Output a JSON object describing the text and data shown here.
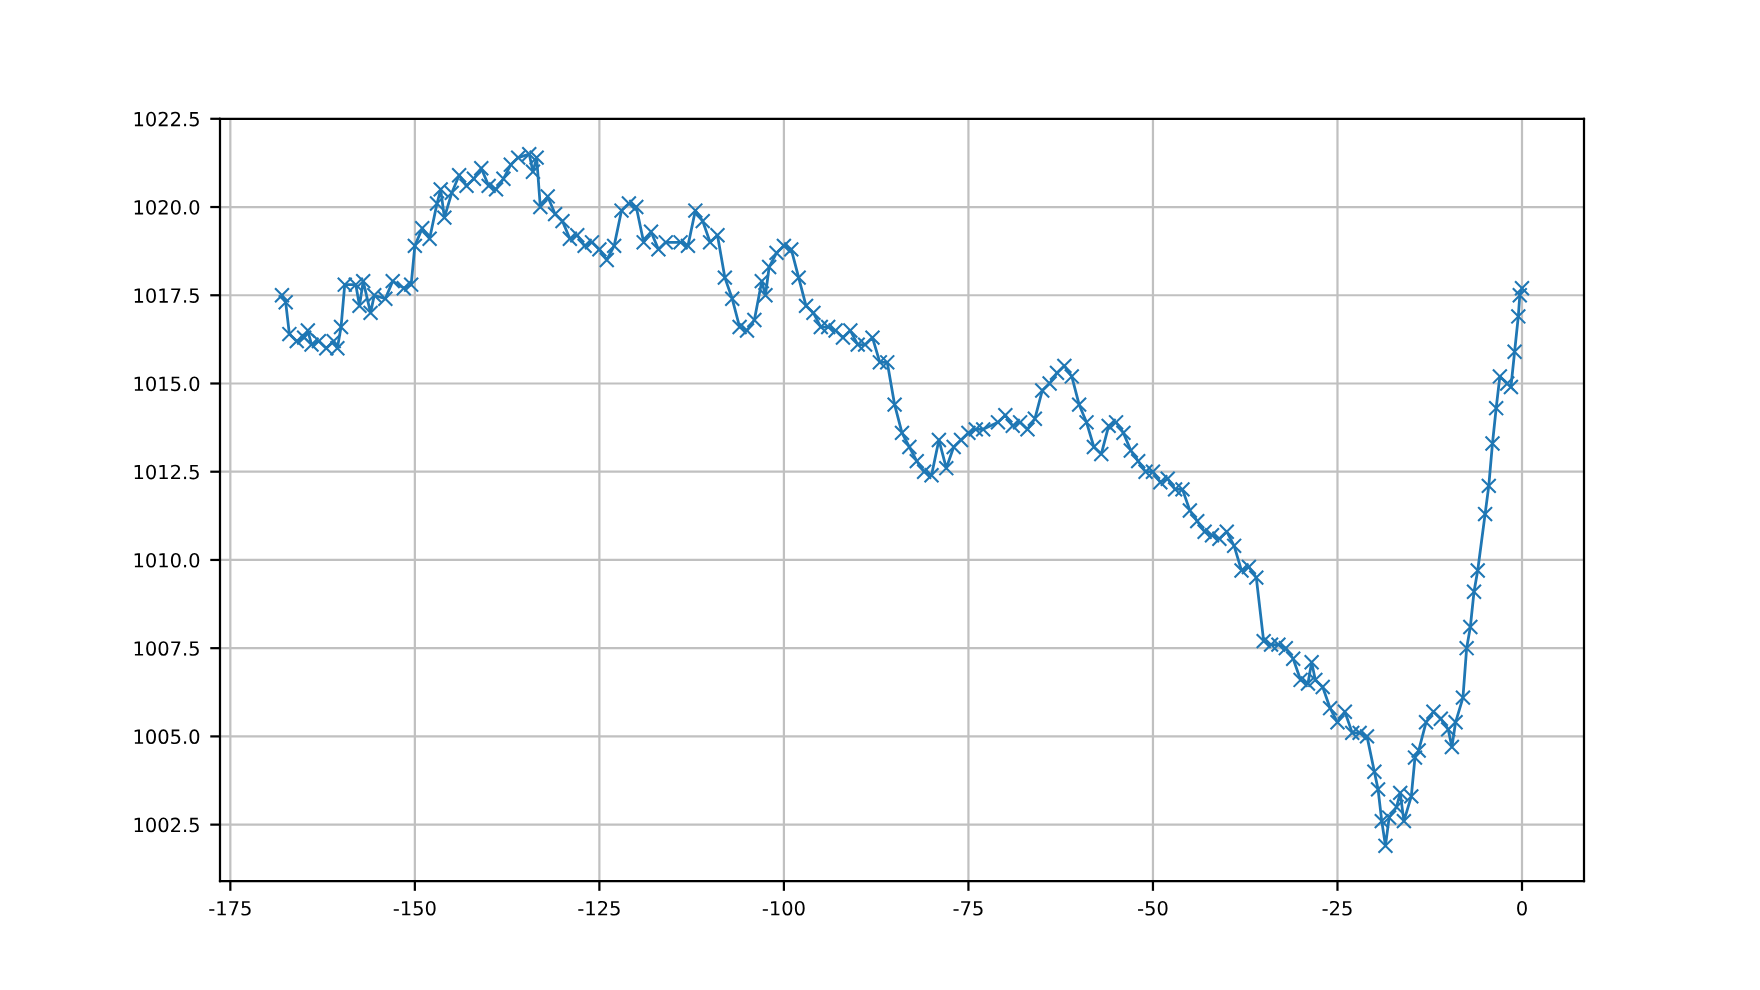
{
  "chart_data": {
    "type": "line",
    "marker": "cross",
    "grid": true,
    "xlim": [
      -176.4,
      8.4
    ],
    "xticks": [
      -175,
      -150,
      -125,
      -100,
      -75,
      -50,
      -25,
      0
    ],
    "ylim": [
      1000.9,
      1022.5
    ],
    "yticks": [
      {
        "value": 1002.5,
        "label": "1002.5"
      },
      {
        "value": 1005,
        "label": "1005.0"
      },
      {
        "value": 1007.5,
        "label": "1007.5"
      },
      {
        "value": 1010,
        "label": "1010.0"
      },
      {
        "value": 1012.5,
        "label": "1012.5"
      },
      {
        "value": 1015,
        "label": "1015.0"
      },
      {
        "value": 1017.5,
        "label": "1017.5"
      },
      {
        "value": 1020,
        "label": "1020.0"
      },
      {
        "value": 1022.5,
        "label": "1022.5"
      }
    ],
    "series": [
      {
        "color": "#1f77b4",
        "x": [
          -168,
          -167.5,
          -167,
          -166,
          -165,
          -164.5,
          -164,
          -163,
          -162,
          -161,
          -160.5,
          -160,
          -159.5,
          -158,
          -157.5,
          -157,
          -156,
          -155.5,
          -154,
          -153,
          -151.5,
          -150.5,
          -150,
          -149,
          -148,
          -147,
          -146.5,
          -146,
          -145,
          -144,
          -143,
          -142,
          -141,
          -140,
          -139,
          -138,
          -137,
          -136,
          -134.5,
          -134,
          -133.5,
          -133,
          -132,
          -131,
          -130,
          -129,
          -128,
          -127,
          -126,
          -125,
          -124,
          -123,
          -122,
          -121,
          -120,
          -119,
          -118,
          -117,
          -116,
          -114,
          -113,
          -112,
          -111,
          -110,
          -109,
          -108,
          -107,
          -106,
          -105,
          -104,
          -103,
          -102.5,
          -102,
          -101,
          -100,
          -99,
          -98,
          -97,
          -96,
          -95,
          -94,
          -93,
          -92,
          -91,
          -90,
          -89,
          -88,
          -87,
          -86,
          -85,
          -84,
          -83,
          -82,
          -81,
          -80,
          -79,
          -78,
          -77,
          -76,
          -75,
          -74,
          -73,
          -71,
          -70,
          -69,
          -68,
          -67,
          -66,
          -65,
          -64,
          -63,
          -62,
          -61,
          -60,
          -59,
          -58,
          -57,
          -56,
          -55,
          -54,
          -53,
          -52,
          -51,
          -50,
          -49,
          -48,
          -47,
          -46,
          -45,
          -44,
          -43,
          -42,
          -41,
          -40,
          -39,
          -38,
          -37,
          -36,
          -35,
          -34,
          -33,
          -32,
          -31,
          -30,
          -29,
          -28.5,
          -28,
          -27,
          -26,
          -25,
          -24,
          -23,
          -22,
          -21,
          -20,
          -19.5,
          -19,
          -18.5,
          -18,
          -17,
          -16.5,
          -16,
          -15,
          -14.5,
          -14,
          -13,
          -12,
          -11,
          -10,
          -9.5,
          -9,
          -8,
          -7.5,
          -7,
          -6.5,
          -6,
          -5,
          -4.5,
          -4,
          -3.5,
          -3,
          -2,
          -1.5,
          -1,
          -0.5,
          -0.3,
          0
        ],
        "values": [
          1017.5,
          1017.3,
          1016.4,
          1016.2,
          1016.3,
          1016.5,
          1016.1,
          1016.2,
          1016.0,
          1016.2,
          1016.0,
          1016.6,
          1017.8,
          1017.8,
          1017.2,
          1017.9,
          1017.0,
          1017.5,
          1017.4,
          1017.9,
          1017.7,
          1017.8,
          1018.9,
          1019.4,
          1019.1,
          1020.1,
          1020.5,
          1019.7,
          1020.4,
          1020.9,
          1020.6,
          1020.8,
          1021.1,
          1020.6,
          1020.5,
          1020.8,
          1021.2,
          1021.4,
          1021.5,
          1021.0,
          1021.4,
          1020.0,
          1020.3,
          1019.8,
          1019.6,
          1019.1,
          1019.2,
          1018.9,
          1019.0,
          1018.8,
          1018.5,
          1018.9,
          1019.9,
          1020.1,
          1020.0,
          1019.0,
          1019.3,
          1018.8,
          1019.0,
          1019.0,
          1018.9,
          1019.9,
          1019.6,
          1019.0,
          1019.2,
          1018.0,
          1017.4,
          1016.6,
          1016.5,
          1016.8,
          1017.9,
          1017.5,
          1018.3,
          1018.7,
          1018.9,
          1018.8,
          1018.0,
          1017.2,
          1017.0,
          1016.6,
          1016.6,
          1016.5,
          1016.3,
          1016.5,
          1016.1,
          1016.1,
          1016.3,
          1015.6,
          1015.6,
          1014.4,
          1013.6,
          1013.2,
          1012.8,
          1012.5,
          1012.4,
          1013.4,
          1012.6,
          1013.2,
          1013.4,
          1013.6,
          1013.7,
          1013.7,
          1013.9,
          1014.1,
          1013.8,
          1013.9,
          1013.7,
          1014.0,
          1014.8,
          1015.0,
          1015.3,
          1015.5,
          1015.2,
          1014.4,
          1013.9,
          1013.2,
          1013.0,
          1013.8,
          1013.9,
          1013.6,
          1013.1,
          1012.8,
          1012.5,
          1012.5,
          1012.2,
          1012.3,
          1012.0,
          1012.0,
          1011.4,
          1011.1,
          1010.8,
          1010.7,
          1010.6,
          1010.8,
          1010.4,
          1009.7,
          1009.8,
          1009.5,
          1007.7,
          1007.6,
          1007.6,
          1007.5,
          1007.2,
          1006.6,
          1006.5,
          1007.1,
          1006.6,
          1006.4,
          1005.8,
          1005.4,
          1005.7,
          1005.1,
          1005.1,
          1005.0,
          1004.0,
          1003.5,
          1002.6,
          1001.9,
          1002.7,
          1003.0,
          1003.4,
          1002.6,
          1003.3,
          1004.4,
          1004.6,
          1005.4,
          1005.7,
          1005.5,
          1005.2,
          1004.7,
          1005.4,
          1006.1,
          1007.5,
          1008.1,
          1009.1,
          1009.7,
          1011.3,
          1012.1,
          1013.3,
          1014.3,
          1015.2,
          1015.0,
          1014.9,
          1015.9,
          1016.9,
          1017.5,
          1017.7
        ]
      }
    ]
  }
}
